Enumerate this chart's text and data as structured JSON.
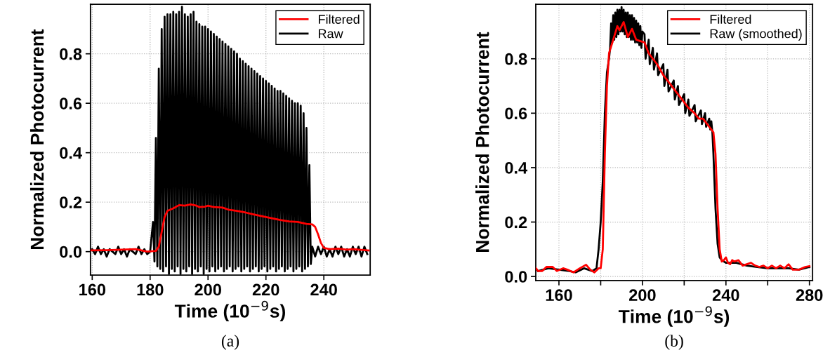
{
  "chart_data": [
    {
      "type": "line",
      "xlabel": "Time (10$^{−9}$s)",
      "ylabel": "Normalized Photocurrent",
      "annotations": [
        "(a)"
      ],
      "xlim": [
        159.4,
        256
      ],
      "ylim": [
        -0.095,
        1.0
      ],
      "xticks": [
        160,
        180,
        200,
        220,
        240
      ],
      "yticks": [
        {
          "value": 0,
          "label": "0.0"
        },
        0.2,
        0.4,
        0.6,
        0.8
      ],
      "grid": true,
      "legend": "top right",
      "series": [
        {
          "name": "Filtered",
          "color": "#ff0000",
          "x": [
            159.5,
            165,
            170,
            175,
            179,
            182,
            183,
            184,
            185,
            186,
            187,
            188,
            190,
            192,
            194,
            196,
            197,
            199,
            200,
            202,
            205,
            207,
            210,
            213,
            216,
            220,
            225,
            228,
            231,
            234,
            236,
            237,
            238,
            239,
            240,
            242,
            245,
            248,
            250,
            255.5
          ],
          "values": [
            0.005,
            0.006,
            0.008,
            0.01,
            0.0,
            0.003,
            0.02,
            0.08,
            0.14,
            0.165,
            0.17,
            0.175,
            0.188,
            0.186,
            0.191,
            0.186,
            0.18,
            0.182,
            0.186,
            0.18,
            0.178,
            0.17,
            0.165,
            0.158,
            0.15,
            0.14,
            0.128,
            0.122,
            0.12,
            0.112,
            0.11,
            0.1,
            0.07,
            0.035,
            0.015,
            0.01,
            0.012,
            0.008,
            0.01,
            0.005
          ]
        },
        {
          "name": "Raw",
          "color": "#000000",
          "x": [
            160,
            161,
            162,
            163,
            164,
            165,
            166,
            167,
            168,
            169,
            170,
            171,
            172,
            173,
            174,
            175,
            176,
            177,
            178,
            179,
            180,
            181,
            181.5,
            182,
            182.5,
            183,
            183.5,
            184,
            184.5,
            185,
            185.5,
            186,
            186.5,
            187,
            187.5,
            188,
            188.5,
            189,
            189.5,
            190,
            190.5,
            191,
            191.5,
            192,
            192.5,
            193,
            193.5,
            194,
            194.5,
            195,
            195.5,
            196,
            196.5,
            197,
            197.5,
            198,
            198.5,
            199,
            199.5,
            200,
            200.5,
            201,
            201.5,
            202,
            202.5,
            203,
            203.5,
            204,
            204.5,
            205,
            205.5,
            206,
            206.5,
            207,
            207.5,
            208,
            208.5,
            209,
            209.5,
            210,
            210.5,
            211,
            211.5,
            212,
            212.5,
            213,
            213.5,
            214,
            214.5,
            215,
            215.5,
            216,
            216.5,
            217,
            217.5,
            218,
            218.5,
            219,
            219.5,
            220,
            220.5,
            221,
            221.5,
            222,
            222.5,
            223,
            223.5,
            224,
            224.5,
            225,
            225.5,
            226,
            226.5,
            227,
            227.5,
            228,
            228.5,
            229,
            229.5,
            230,
            230.5,
            231,
            231.5,
            232,
            232.5,
            233,
            233.5,
            234,
            234.5,
            235,
            235.5,
            236,
            237,
            238,
            239,
            240,
            241,
            242,
            243,
            244,
            245,
            246,
            247,
            248,
            249,
            250,
            251,
            252,
            253,
            254,
            255
          ],
          "values": [
            0.01,
            -0.01,
            0.02,
            -0.01,
            0.01,
            -0.02,
            0.01,
            0.0,
            -0.01,
            0.02,
            -0.01,
            0.01,
            -0.02,
            0.01,
            0.0,
            -0.01,
            0.02,
            -0.01,
            0.01,
            -0.01,
            0.0,
            0.12,
            -0.04,
            0.46,
            -0.06,
            0.74,
            -0.07,
            0.9,
            -0.08,
            0.95,
            -0.06,
            0.96,
            -0.09,
            0.96,
            -0.07,
            0.97,
            -0.08,
            0.96,
            -0.06,
            0.97,
            -0.09,
            0.99,
            -0.07,
            0.96,
            -0.08,
            0.95,
            -0.06,
            0.96,
            -0.09,
            0.97,
            -0.07,
            0.93,
            -0.08,
            0.92,
            -0.06,
            0.91,
            -0.09,
            0.91,
            -0.07,
            0.9,
            -0.08,
            0.89,
            -0.06,
            0.88,
            -0.08,
            0.87,
            -0.07,
            0.86,
            -0.06,
            0.85,
            -0.08,
            0.84,
            -0.07,
            0.83,
            -0.06,
            0.82,
            -0.08,
            0.81,
            -0.07,
            0.8,
            -0.06,
            0.78,
            -0.08,
            0.77,
            -0.07,
            0.76,
            -0.06,
            0.75,
            -0.08,
            0.74,
            -0.07,
            0.73,
            -0.06,
            0.72,
            -0.08,
            0.71,
            -0.07,
            0.7,
            -0.06,
            0.69,
            -0.08,
            0.68,
            -0.07,
            0.67,
            -0.06,
            0.66,
            -0.08,
            0.65,
            -0.07,
            0.65,
            -0.06,
            0.64,
            -0.08,
            0.63,
            -0.07,
            0.62,
            -0.06,
            0.61,
            -0.08,
            0.6,
            -0.07,
            0.6,
            -0.06,
            0.59,
            -0.08,
            0.56,
            -0.07,
            0.5,
            -0.06,
            0.35,
            -0.05,
            0.02,
            -0.02,
            0.02,
            -0.01,
            0.02,
            -0.02,
            0.01,
            -0.02,
            0.02,
            -0.01,
            0.02,
            -0.02,
            0.01,
            -0.02,
            0.02,
            -0.01,
            0.02,
            -0.02,
            0.02,
            -0.01
          ]
        }
      ]
    },
    {
      "type": "line",
      "xlabel": "Time (10$^{−9}$s)",
      "ylabel": "Normalized Photocurrent",
      "annotations": [
        "(b)"
      ],
      "xlim": [
        148.9,
        281.5
      ],
      "ylim": [
        -0.015,
        1.0
      ],
      "xticks": [
        160,
        {
          "value": 180,
          "label": null
        },
        200,
        {
          "value": 220,
          "label": null
        },
        240,
        {
          "value": 260,
          "label": null
        },
        280
      ],
      "yticks": [
        {
          "value": 0,
          "label": "0.0"
        },
        0.2,
        0.4,
        0.6,
        0.8
      ],
      "grid": true,
      "legend": "top right",
      "series": [
        {
          "name": "Filtered",
          "color": "#ff0000",
          "x": [
            149,
            150,
            152,
            154,
            157,
            159,
            162,
            164,
            167,
            170,
            173,
            175,
            177,
            179,
            180,
            181,
            182,
            183,
            184,
            186,
            188,
            189,
            191,
            193,
            195,
            197,
            199,
            201,
            203,
            205,
            207,
            210,
            213,
            216,
            219,
            222,
            225,
            227,
            229,
            231,
            232,
            233,
            234,
            235,
            236,
            237,
            238,
            239,
            240,
            241,
            242,
            243,
            244,
            246,
            248,
            250,
            252,
            254,
            256,
            258,
            260,
            262,
            264,
            266,
            268,
            270,
            272,
            275,
            278,
            280
          ],
          "values": [
            0.03,
            0.02,
            0.02,
            0.035,
            0.035,
            0.02,
            0.03,
            0.025,
            0.015,
            0.03,
            0.043,
            0.025,
            0.015,
            0.03,
            0.03,
            0.1,
            0.45,
            0.7,
            0.82,
            0.87,
            0.92,
            0.905,
            0.935,
            0.88,
            0.91,
            0.87,
            0.865,
            0.86,
            0.82,
            0.8,
            0.78,
            0.74,
            0.71,
            0.68,
            0.65,
            0.62,
            0.6,
            0.58,
            0.58,
            0.56,
            0.55,
            0.54,
            0.53,
            0.45,
            0.25,
            0.1,
            0.055,
            0.06,
            0.07,
            0.05,
            0.045,
            0.06,
            0.055,
            0.06,
            0.04,
            0.045,
            0.05,
            0.04,
            0.035,
            0.04,
            0.03,
            0.04,
            0.03,
            0.04,
            0.03,
            0.045,
            0.025,
            0.025,
            0.035,
            0.038
          ]
        },
        {
          "name": "Raw (smoothed)",
          "color": "#000000",
          "x": [
            150,
            155,
            160,
            165,
            168,
            172,
            176,
            178,
            179,
            180,
            181,
            182,
            183,
            184,
            184.5,
            185,
            185.5,
            186,
            186.5,
            187,
            187.5,
            188,
            188.5,
            189,
            189.5,
            190,
            190.5,
            191,
            191.5,
            192,
            192.5,
            193,
            193.5,
            194,
            194.5,
            195,
            195.5,
            196,
            196.5,
            197,
            197.5,
            198,
            198.5,
            199,
            199.5,
            200,
            201,
            201.5,
            203,
            203.5,
            205,
            205.5,
            207,
            207.5,
            210,
            210.5,
            212,
            212.5,
            215,
            215.5,
            217,
            217.5,
            220,
            220.5,
            222,
            222.5,
            225,
            225.5,
            228,
            228.5,
            230,
            230.5,
            232,
            232.5,
            233,
            233.5,
            234,
            235,
            236,
            237,
            238,
            240,
            245,
            250,
            255,
            260,
            265,
            270,
            275,
            280
          ],
          "values": [
            0.02,
            0.03,
            0.025,
            0.02,
            0.015,
            0.03,
            0.02,
            0.03,
            0.1,
            0.2,
            0.35,
            0.6,
            0.75,
            0.8,
            0.84,
            0.93,
            0.86,
            0.96,
            0.87,
            0.97,
            0.88,
            0.98,
            0.89,
            0.98,
            0.9,
            0.99,
            0.9,
            0.98,
            0.89,
            0.97,
            0.88,
            0.97,
            0.88,
            0.96,
            0.87,
            0.96,
            0.87,
            0.95,
            0.86,
            0.94,
            0.86,
            0.93,
            0.85,
            0.92,
            0.84,
            0.9,
            0.89,
            0.8,
            0.87,
            0.78,
            0.84,
            0.76,
            0.82,
            0.74,
            0.78,
            0.7,
            0.76,
            0.68,
            0.72,
            0.65,
            0.7,
            0.63,
            0.67,
            0.6,
            0.65,
            0.59,
            0.63,
            0.57,
            0.61,
            0.56,
            0.6,
            0.55,
            0.58,
            0.54,
            0.57,
            0.53,
            0.45,
            0.25,
            0.12,
            0.07,
            0.06,
            0.05,
            0.05,
            0.04,
            0.035,
            0.03,
            0.03,
            0.03,
            0.025,
            0.035
          ]
        }
      ]
    }
  ]
}
